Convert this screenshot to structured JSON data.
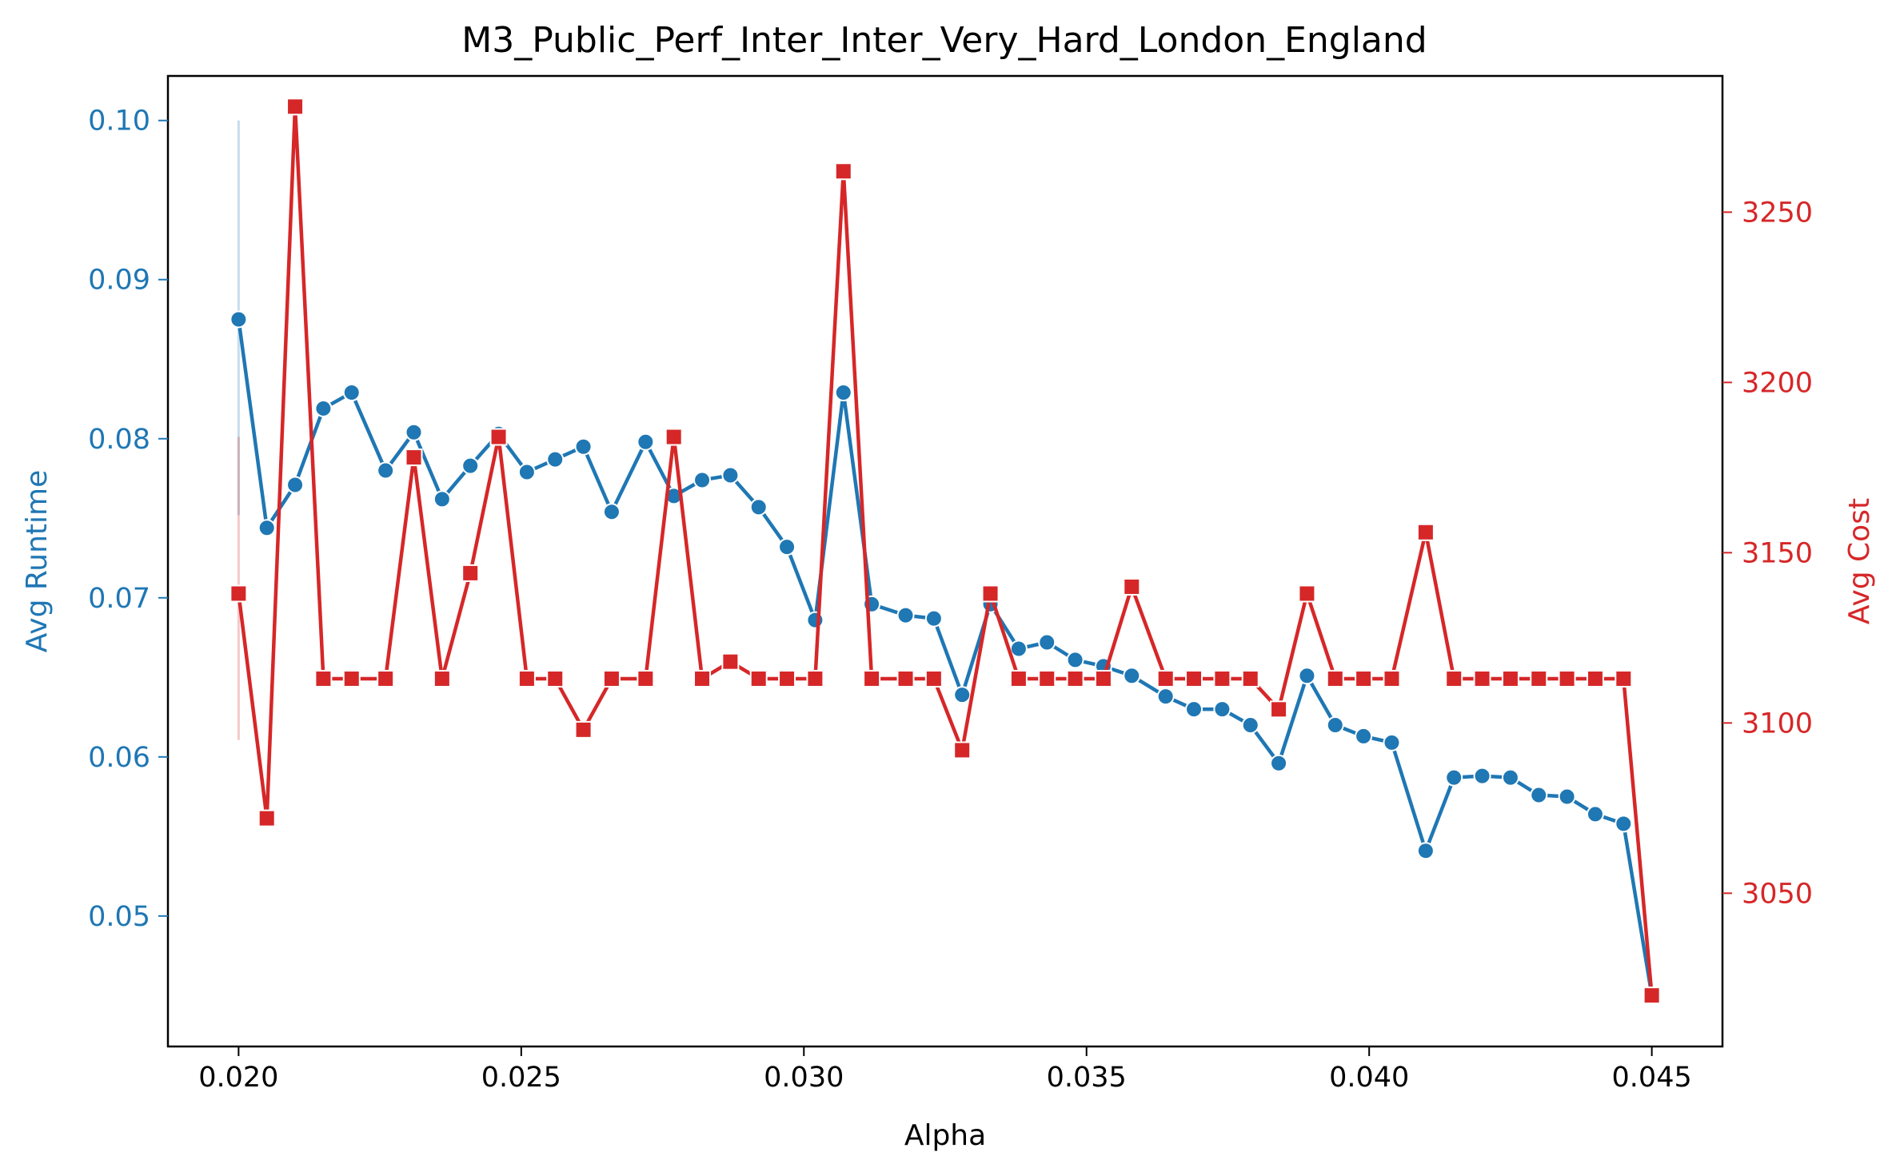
{
  "chart_data": {
    "type": "line",
    "title": "M3_Public_Perf_Inter_Inter_Very_Hard_London_England",
    "xlabel": "Alpha",
    "ylabel_left": "Avg Runtime",
    "ylabel_right": "Avg Cost",
    "xlim": [
      0.01875,
      0.04625
    ],
    "ylim_left": [
      0.0418,
      0.1028
    ],
    "ylim_right": [
      3005,
      3290
    ],
    "x_ticks": [
      "0.020",
      "0.025",
      "0.030",
      "0.035",
      "0.040",
      "0.045"
    ],
    "y_ticks_left": [
      "0.05",
      "0.06",
      "0.07",
      "0.08",
      "0.09",
      "0.10"
    ],
    "y_ticks_right": [
      "3050",
      "3100",
      "3150",
      "3200",
      "3250"
    ],
    "grid": false,
    "colors": {
      "runtime": "#1f77b4",
      "cost": "#d62728"
    },
    "x": [
      0.02,
      0.0205,
      0.021,
      0.0215,
      0.022,
      0.0226,
      0.0231,
      0.0236,
      0.0241,
      0.0246,
      0.0251,
      0.0256,
      0.0261,
      0.0266,
      0.0272,
      0.0277,
      0.0282,
      0.0287,
      0.0292,
      0.0297,
      0.0302,
      0.0307,
      0.0312,
      0.0318,
      0.0323,
      0.0328,
      0.0333,
      0.0338,
      0.0343,
      0.0348,
      0.0353,
      0.0358,
      0.0364,
      0.0369,
      0.0374,
      0.0379,
      0.0384,
      0.0389,
      0.0394,
      0.0399,
      0.0404,
      0.041,
      0.0415,
      0.042,
      0.0425,
      0.043,
      0.0435,
      0.044,
      0.0445,
      0.045
    ],
    "series": [
      {
        "name": "Avg Runtime",
        "axis": "left",
        "marker": "circle",
        "values": [
          0.0875,
          0.0744,
          0.0771,
          0.0819,
          0.0829,
          0.078,
          0.0804,
          0.0762,
          0.0783,
          0.0803,
          0.0779,
          0.0787,
          0.0795,
          0.0754,
          0.0798,
          0.0764,
          0.0774,
          0.0777,
          0.0757,
          0.0732,
          0.0686,
          0.0829,
          0.0696,
          0.0689,
          0.0687,
          0.0639,
          0.0696,
          0.0668,
          0.0672,
          0.0661,
          0.0657,
          0.0651,
          0.0638,
          0.063,
          0.063,
          0.062,
          0.0596,
          0.0651,
          0.062,
          0.0613,
          0.0609,
          0.0541,
          0.0587,
          0.0588,
          0.0587,
          0.0576,
          0.0575,
          0.0564,
          0.0558,
          0.045
        ],
        "error_bar": {
          "x": 0.02,
          "low": 0.0752,
          "high": 0.1
        }
      },
      {
        "name": "Avg Cost",
        "axis": "right",
        "marker": "square",
        "values": [
          3138,
          3072,
          3281,
          3113,
          3113,
          3113,
          3178,
          3113,
          3144,
          3184,
          3113,
          3113,
          3098,
          3113,
          3113,
          3184,
          3113,
          3118,
          3113,
          3113,
          3113,
          3262,
          3113,
          3113,
          3113,
          3092,
          3138,
          3113,
          3113,
          3113,
          3113,
          3140,
          3113,
          3113,
          3113,
          3113,
          3104,
          3138,
          3113,
          3113,
          3113,
          3156,
          3113,
          3113,
          3113,
          3113,
          3113,
          3113,
          3113,
          3020
        ],
        "error_bar": {
          "x": 0.02,
          "low": 3095,
          "high": 3184
        }
      }
    ]
  }
}
